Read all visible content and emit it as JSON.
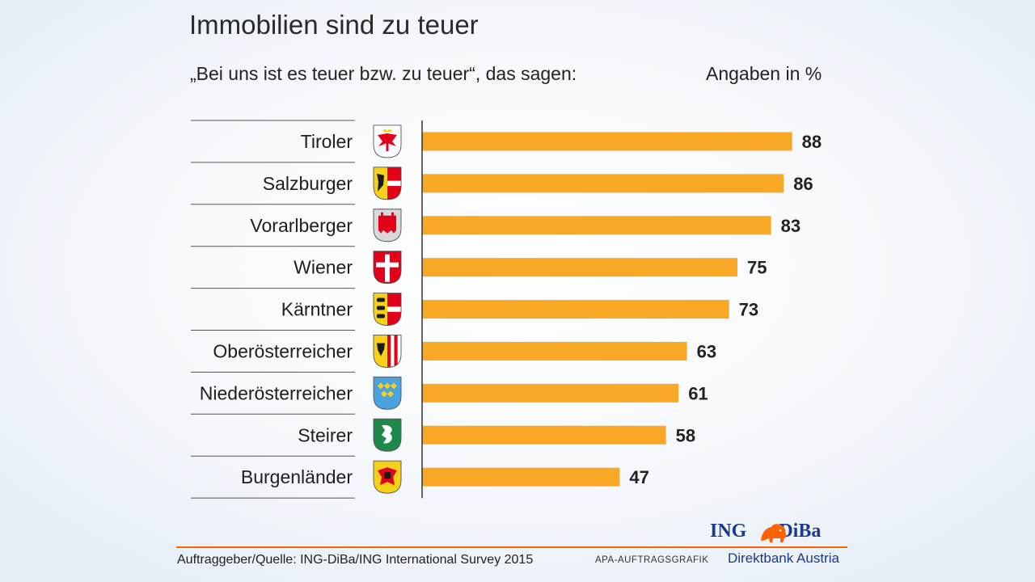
{
  "title": "Immobilien sind zu teuer",
  "subtitle": "„Bei uns ist es teuer bzw. zu teuer“, das sagen:",
  "unit_label": "Angaben in %",
  "source": "Auftraggeber/Quelle: ING-DiBa/ING International Survey 2015",
  "credit": "APA-AUFTRAGSGRAFIK",
  "logo": {
    "brand_left": "ING",
    "brand_right": "DiBa",
    "tagline": "Direktbank Austria"
  },
  "colors": {
    "bar": "#f9a825",
    "footer_line": "#ff6200",
    "logo": "#1a3a8f",
    "lion": "#ff6200"
  },
  "chart_data": {
    "type": "bar",
    "orientation": "horizontal",
    "categories": [
      "Tiroler",
      "Salzburger",
      "Vorarlberger",
      "Wiener",
      "Kärntner",
      "Oberösterreicher",
      "Niederösterreicher",
      "Steirer",
      "Burgenländer"
    ],
    "values": [
      88,
      86,
      83,
      75,
      73,
      63,
      61,
      58,
      47
    ],
    "icons": [
      "tirol-coat-of-arms-icon",
      "salzburg-coat-of-arms-icon",
      "vorarlberg-coat-of-arms-icon",
      "wien-coat-of-arms-icon",
      "kaernten-coat-of-arms-icon",
      "oberoesterreich-coat-of-arms-icon",
      "niederoesterreich-coat-of-arms-icon",
      "steiermark-coat-of-arms-icon",
      "burgenland-coat-of-arms-icon"
    ],
    "xlim": [
      0,
      100
    ],
    "data_labels": true,
    "grid": false,
    "legend": "none"
  }
}
